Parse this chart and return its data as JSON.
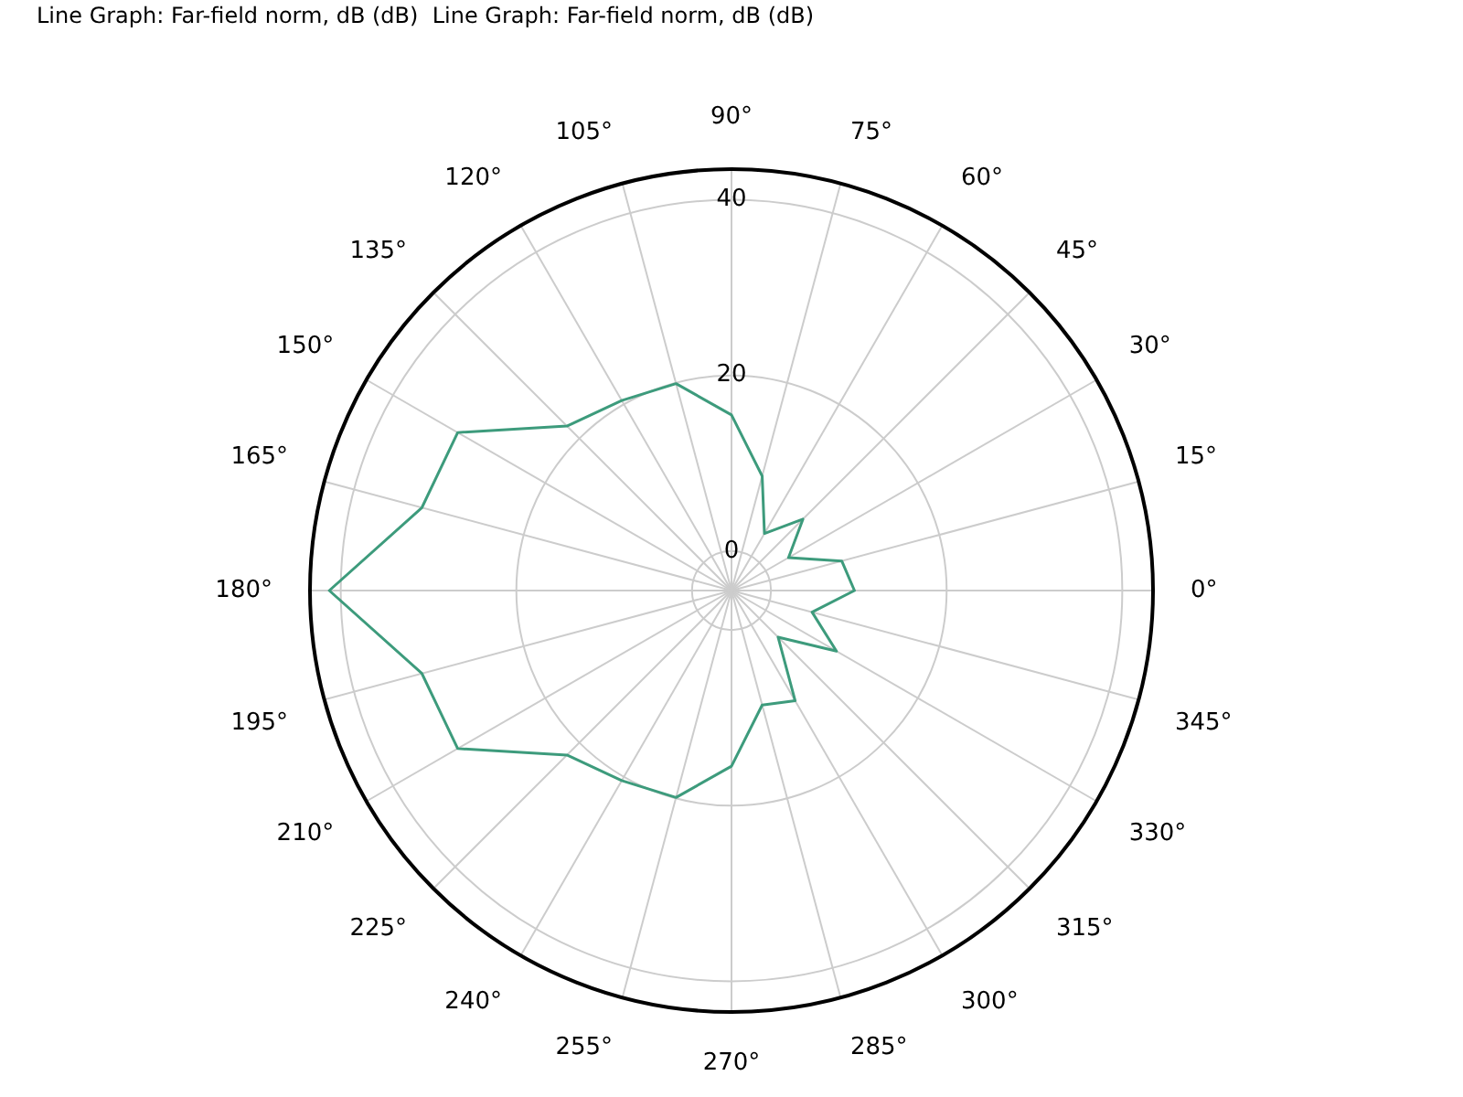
{
  "chart_data": {
    "type": "radar",
    "title": "Line Graph: Far-field norm, dB (dB)  Line Graph: Far-field norm, dB (dB)",
    "categories": [
      "90°",
      "75°",
      "60°",
      "45°",
      "30°",
      "15°",
      "0°",
      "345°",
      "330°",
      "315°",
      "300°",
      "285°",
      "270°",
      "255°",
      "240°",
      "225°",
      "210°",
      "195°",
      "180°",
      "165°",
      "150°",
      "135°",
      "120°",
      "105°"
    ],
    "series": [
      {
        "color": "#3d9b7c",
        "values": [
          15.5,
          9,
          3,
          7,
          3,
          8.5,
          9.5,
          5,
          9.3,
          3,
          10,
          9,
          15.5,
          19.9,
          20.5,
          22,
          31.5,
          32,
          41.3,
          32,
          31.5,
          22,
          20.5,
          19.9
        ]
      }
    ],
    "ylim": [
      -4.5,
      43.5
    ],
    "yticks": [
      0,
      20,
      40
    ],
    "grid": true,
    "legend": false,
    "marker": "none",
    "line_style": "solid"
  }
}
